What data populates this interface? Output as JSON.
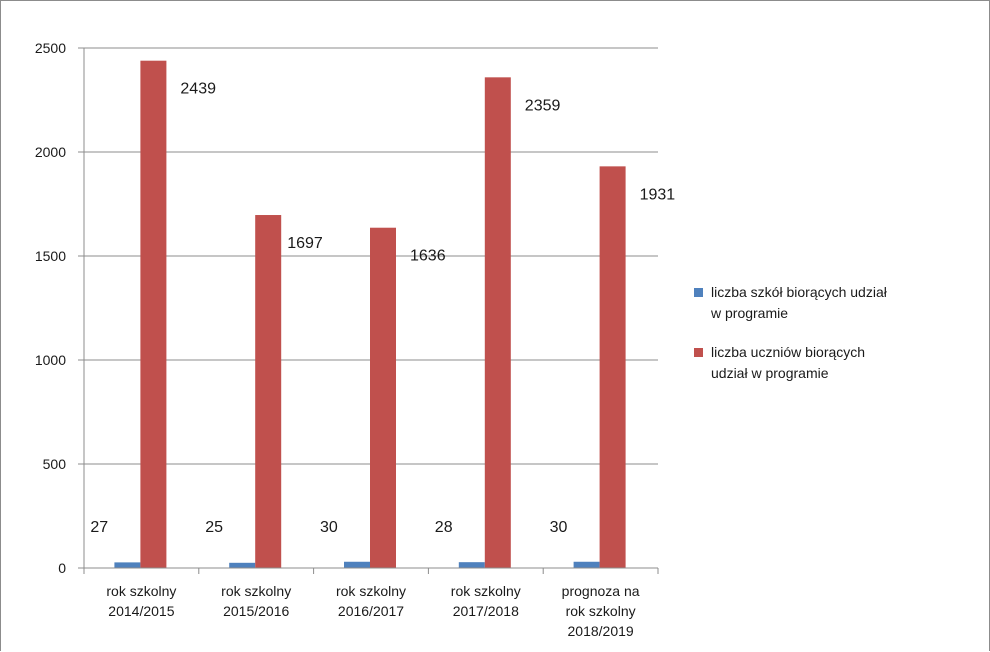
{
  "chart_data": {
    "type": "bar",
    "categories": [
      [
        "rok szkolny",
        "2014/2015"
      ],
      [
        "rok szkolny",
        "2015/2016"
      ],
      [
        "rok szkolny",
        "2016/2017"
      ],
      [
        "rok szkolny",
        "2017/2018"
      ],
      [
        "prognoza na",
        "rok szkolny",
        "2018/2019"
      ]
    ],
    "series": [
      {
        "name_lines": [
          "liczba szkół biorących udział",
          "w programie"
        ],
        "color": "#4f81bd",
        "values": [
          27,
          25,
          30,
          28,
          30
        ]
      },
      {
        "name_lines": [
          "liczba uczniów biorących",
          "udział w programie"
        ],
        "color": "#c0504d",
        "values": [
          2439,
          1697,
          1636,
          2359,
          1931
        ]
      }
    ],
    "ylim": [
      0,
      2500
    ],
    "yticks": [
      0,
      500,
      1000,
      1500,
      2000,
      2500
    ],
    "grid": true,
    "legend_position": "right",
    "title": "",
    "xlabel": "",
    "ylabel": ""
  }
}
